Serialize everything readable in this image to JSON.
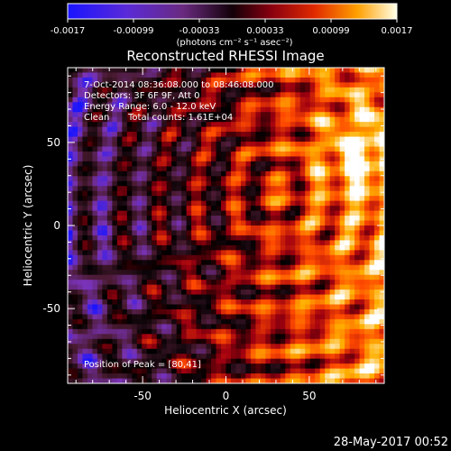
{
  "chart_data": {
    "type": "heatmap",
    "title": "Reconstructed RHESSI Image",
    "xlabel": "Heliocentric X (arcsec)",
    "ylabel": "Heliocentric Y (arcsec)",
    "xlim": [
      -95,
      95
    ],
    "ylim": [
      -95,
      95
    ],
    "xticks": [
      -50,
      0,
      50
    ],
    "yticks": [
      -50,
      0,
      50
    ],
    "colorbar": {
      "ticks": [
        "-0.0017",
        "-0.00099",
        "-0.00033",
        "0.00033",
        "0.00099",
        "0.0017"
      ],
      "unit_label": "(photons cm⁻² s⁻¹ asec⁻²)",
      "min": -0.0017,
      "max": 0.0017,
      "colormap_stops": [
        "#1a14ff",
        "#7a33b8",
        "#4a1a30",
        "#000000",
        "#a00010",
        "#ff4a00",
        "#ffb000",
        "#ffffff"
      ]
    },
    "annotations": {
      "line1": "7-Oct-2014 08:36:08.000 to 08:46:08.000",
      "line2": "Detectors: 3F 6F 9F, Att 0",
      "line3": "Energy Range: 6.0 - 12.0 keV",
      "line4_method": "Clean",
      "line4_counts": "Total counts: 1.61E+04",
      "peak": "Position of Peak = [80,41]"
    },
    "peak_position": [
      80,
      41
    ]
  },
  "footer": {
    "timestamp": "28-May-2017 00:52"
  }
}
